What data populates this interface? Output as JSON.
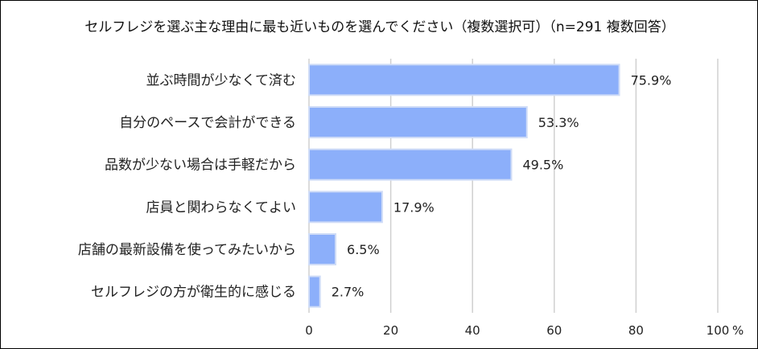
{
  "chart_data": {
    "type": "bar",
    "orientation": "horizontal",
    "title": "セルフレジを選ぶ主な理由に最も近いものを選んでください（複数選択可）（n=291 複数回答）",
    "categories": [
      "並ぶ時間が少なくて済む",
      "自分のペースで会計ができる",
      "品数が少ない場合は手軽だから",
      "店員と関わらなくてよい",
      "店舗の最新設備を使ってみたいから",
      "セルフレジの方が衛生的に感じる"
    ],
    "values": [
      75.9,
      53.3,
      49.5,
      17.9,
      6.5,
      2.7
    ],
    "value_labels": [
      "75.9%",
      "53.3%",
      "49.5%",
      "17.9%",
      "6.5%",
      "2.7%"
    ],
    "xlim": [
      0,
      100
    ],
    "x_ticks": [
      "0",
      "20",
      "40",
      "60",
      "80",
      "100"
    ],
    "x_unit": "%",
    "grid": "vertical",
    "legend": "none",
    "colors": {
      "bar": "#8caffa",
      "bar_border": "#cfdcf7",
      "grid": "#d0d0d0",
      "text": "#222222"
    }
  }
}
